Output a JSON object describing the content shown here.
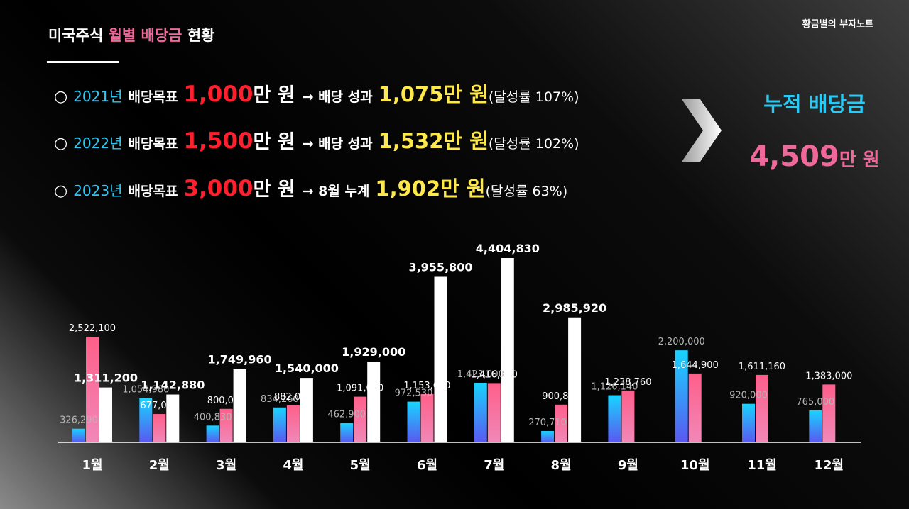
{
  "header": {
    "title_part1": "미국주식",
    "title_part2": "월별 배당금",
    "title_part3": "현황",
    "brand": "황금별의 부자노트"
  },
  "goals": [
    {
      "bullet": "○",
      "year": "2021년",
      "label": "배당목표",
      "target": "1,000",
      "target_unit": "만 원",
      "arrow_label": "→ 배당 성과",
      "result": "1,075만 원",
      "rate": "(달성률 107%)"
    },
    {
      "bullet": "○",
      "year": "2022년",
      "label": "배당목표",
      "target": "1,500",
      "target_unit": "만 원",
      "arrow_label": "→ 배당 성과",
      "result": "1,532만 원",
      "rate": "(달성률 102%)"
    },
    {
      "bullet": "○",
      "year": "2023년",
      "label": "배당목표",
      "target": "3,000",
      "target_unit": "만 원",
      "arrow_label": "→ 8월 누계",
      "result": "1,902만 원",
      "rate": "(달성률 63%)"
    }
  ],
  "accumulated": {
    "label": "누적 배당금",
    "value": "4,509",
    "unit": "만 원"
  },
  "colors": {
    "series_2021": "#2fb7ff",
    "series_2022": "#ff6b94",
    "series_2023": "#ffffff",
    "target_red": "#ff1f2d",
    "result_yellow": "#ffe94a",
    "year_cyan": "#29c9f5",
    "accent_pink": "#f0689a"
  },
  "chart_data": {
    "type": "bar",
    "categories": [
      "1월",
      "2월",
      "3월",
      "4월",
      "5월",
      "6월",
      "7월",
      "8월",
      "9월",
      "10월",
      "11월",
      "12월"
    ],
    "series": [
      {
        "values": [
          326290,
          1054980,
          400830,
          834260,
          462900,
          972530,
          1423000,
          270710,
          1126140,
          2200000,
          920000,
          765000
        ],
        "labels": [
          "326,290",
          "1,054,980",
          "400,830",
          "834,260",
          "462,900",
          "972,530",
          "1,423,000",
          "270,710",
          "1,126,140",
          "2,200,000",
          "920,000",
          "765,000"
        ]
      },
      {
        "values": [
          2522100,
          677000,
          800000,
          882000,
          1091000,
          1153660,
          1416370,
          900840,
          1238760,
          1644900,
          1611160,
          1383000
        ],
        "labels": [
          "2,522,100",
          "677,000",
          "800,000",
          "882,000",
          "1,091,000",
          "1,153,660",
          "1,416,370",
          "900,840",
          "1,238,760",
          "1,644,900",
          "1,611,160",
          "1,383,000"
        ]
      },
      {
        "values": [
          1311200,
          1142880,
          1749960,
          1540000,
          1929000,
          3955800,
          4404830,
          2985920,
          null,
          null,
          null,
          null
        ],
        "labels": [
          "1,311,200",
          "1,142,880",
          "1,749,960",
          "1,540,000",
          "1,929,000",
          "3,955,800",
          "4,404,830",
          "2,985,920",
          "",
          "",
          "",
          ""
        ]
      }
    ],
    "ylim": [
      0,
      4404830
    ],
    "grid": false,
    "legend": "none"
  }
}
